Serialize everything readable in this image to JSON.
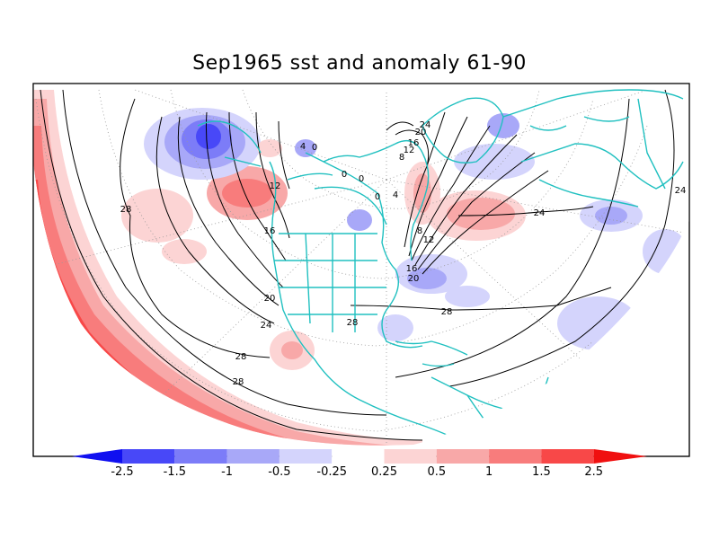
{
  "title": "Sep1965 sst and anomaly 61-90",
  "colors": {
    "coast": "#20c0c0",
    "neg_strong": "#1010f0",
    "neg_3": "#4848f8",
    "neg_2": "#7c7cf8",
    "neg_1": "#a8a8f8",
    "neg_0": "#d4d4fc",
    "pos_0": "#fcd4d4",
    "pos_1": "#f8a8a8",
    "pos_2": "#f87c7c",
    "pos_3": "#f84848",
    "pos_strong": "#f01010"
  },
  "colorbar": {
    "ticks": [
      "-2.5",
      "-1.5",
      "-1",
      "-0.5",
      "-0.25",
      "0.25",
      "0.5",
      "1",
      "1.5",
      "2.5"
    ]
  },
  "contour_labels": [
    "28",
    "28",
    "28",
    "28",
    "24",
    "24",
    "24",
    "20",
    "20",
    "16",
    "16",
    "12",
    "12",
    "8",
    "4",
    "0",
    "0",
    "0",
    "0",
    "4",
    "8",
    "12",
    "16",
    "20",
    "24",
    "28"
  ]
}
